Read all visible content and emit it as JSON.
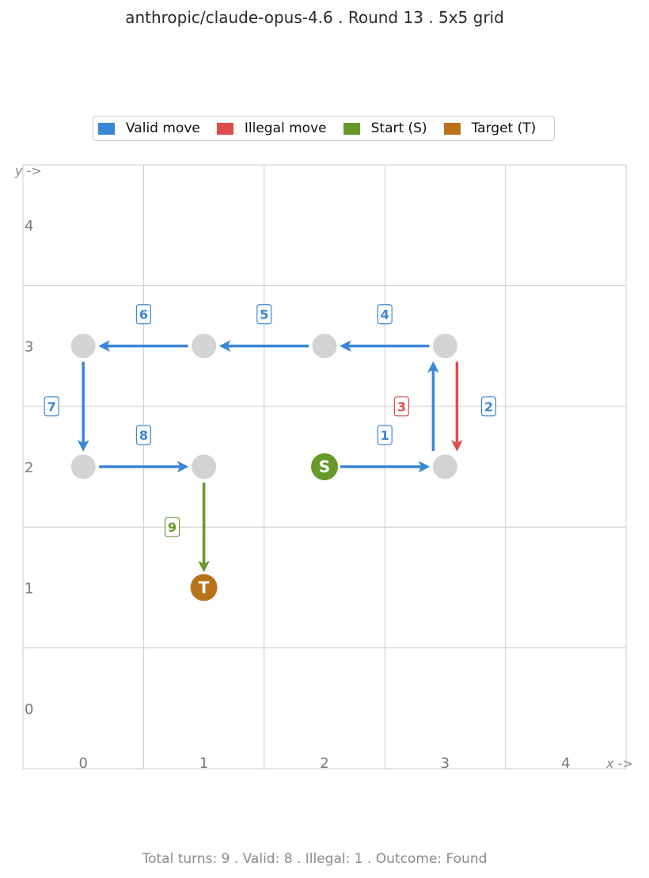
{
  "title": "anthropic/claude-opus-4.6  .  Round 13  .  5x5 grid",
  "legend": [
    {
      "label": "Valid move",
      "color": "#3a86d9"
    },
    {
      "label": "Illegal move",
      "color": "#e04b4b"
    },
    {
      "label": "Start (S)",
      "color": "#66992a"
    },
    {
      "label": "Target (T)",
      "color": "#b8731a"
    }
  ],
  "footer": "Total turns: 9   .   Valid: 8   .   Illegal: 1   .   Outcome: Found",
  "chart_data": {
    "type": "scatter",
    "grid_size": 5,
    "x_ticks": [
      "0",
      "1",
      "2",
      "3",
      "4"
    ],
    "y_ticks": [
      "0",
      "1",
      "2",
      "3",
      "4"
    ],
    "xlabel": "x ->",
    "ylabel": "y ->",
    "grid": true,
    "legend_position": "top-center",
    "start": {
      "x": 2,
      "y": 2,
      "label": "S",
      "color": "#66992a"
    },
    "target": {
      "x": 1,
      "y": 1,
      "label": "T",
      "color": "#b8731a"
    },
    "visited": [
      {
        "x": 3,
        "y": 2
      },
      {
        "x": 3,
        "y": 3
      },
      {
        "x": 2,
        "y": 3
      },
      {
        "x": 1,
        "y": 3
      },
      {
        "x": 0,
        "y": 3
      },
      {
        "x": 0,
        "y": 2
      },
      {
        "x": 1,
        "y": 2
      }
    ],
    "moves": [
      {
        "step": "1",
        "from": [
          2,
          2
        ],
        "to": [
          3,
          2
        ],
        "kind": "valid"
      },
      {
        "step": "2",
        "from": [
          3,
          2
        ],
        "to": [
          3,
          3
        ],
        "kind": "valid"
      },
      {
        "step": "3",
        "from": [
          3,
          3
        ],
        "to": [
          3,
          2
        ],
        "kind": "illegal"
      },
      {
        "step": "4",
        "from": [
          3,
          3
        ],
        "to": [
          2,
          3
        ],
        "kind": "valid"
      },
      {
        "step": "5",
        "from": [
          2,
          3
        ],
        "to": [
          1,
          3
        ],
        "kind": "valid"
      },
      {
        "step": "6",
        "from": [
          1,
          3
        ],
        "to": [
          0,
          3
        ],
        "kind": "valid"
      },
      {
        "step": "7",
        "from": [
          0,
          3
        ],
        "to": [
          0,
          2
        ],
        "kind": "valid"
      },
      {
        "step": "8",
        "from": [
          0,
          2
        ],
        "to": [
          1,
          2
        ],
        "kind": "valid"
      },
      {
        "step": "9",
        "from": [
          1,
          2
        ],
        "to": [
          1,
          1
        ],
        "kind": "final"
      }
    ],
    "colors": {
      "valid": "#3a86d9",
      "illegal": "#e04b4b",
      "final": "#66992a",
      "node": "#d3d3d3",
      "grid": "#cccccc"
    }
  }
}
